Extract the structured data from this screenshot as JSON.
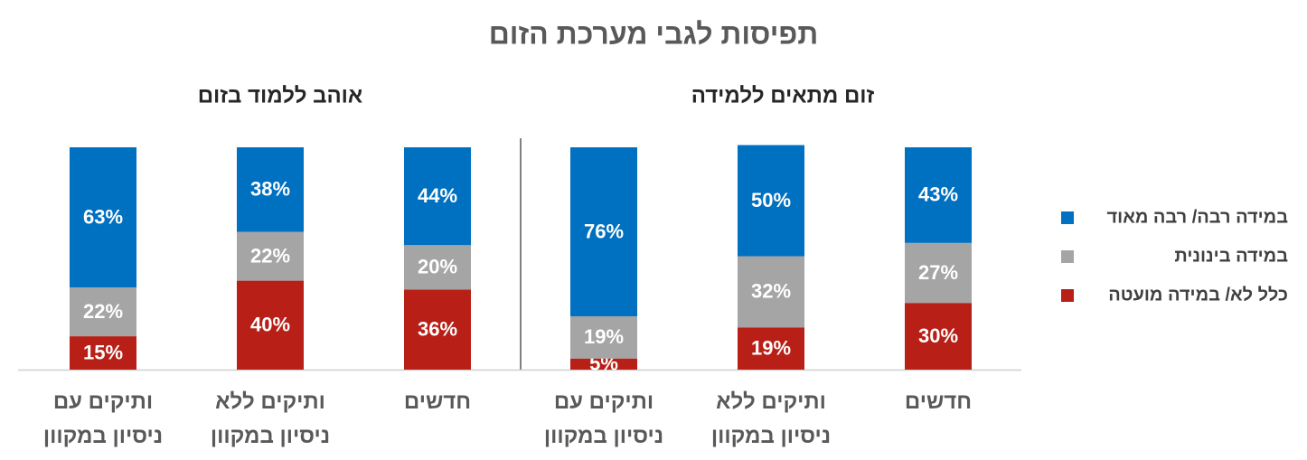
{
  "title": "תפיסות לגבי מערכת הזום",
  "chart_data": [
    {
      "type": "bar",
      "stacked": true,
      "subtitle": "זום מתאים ללמידה",
      "categories": [
        "חדשים",
        "ותיקים ללא ניסיון במקוון",
        "ותיקים עם ניסיון במקוון"
      ],
      "ylim": [
        0,
        100
      ],
      "series": [
        {
          "name": "במידה רבה/ רבה מאוד",
          "color": "#0070c0",
          "values": [
            43,
            50,
            76
          ],
          "value_labels": [
            "43%",
            "50%",
            "76%"
          ]
        },
        {
          "name": "במידה בינונית",
          "color": "#a5a5a5",
          "values": [
            27,
            32,
            19
          ],
          "value_labels": [
            "27%",
            "32%",
            "19%"
          ]
        },
        {
          "name": "כלל לא/ במידה מועטה",
          "color": "#b81f16",
          "values": [
            30,
            19,
            5
          ],
          "value_labels": [
            "30%",
            "19%",
            "5%"
          ]
        }
      ]
    },
    {
      "type": "bar",
      "stacked": true,
      "subtitle": "אוהב ללמוד בזום",
      "categories": [
        "חדשים",
        "ותיקים ללא ניסיון במקוון",
        "ותיקים עם ניסיון במקוון"
      ],
      "ylim": [
        0,
        100
      ],
      "series": [
        {
          "name": "במידה רבה/ רבה מאוד",
          "color": "#0070c0",
          "values": [
            44,
            38,
            63
          ],
          "value_labels": [
            "44%",
            "38%",
            "63%"
          ]
        },
        {
          "name": "במידה בינונית",
          "color": "#a5a5a5",
          "values": [
            20,
            22,
            22
          ],
          "value_labels": [
            "20%",
            "22%",
            "22%"
          ]
        },
        {
          "name": "כלל לא/ במידה מועטה",
          "color": "#b81f16",
          "values": [
            36,
            40,
            15
          ],
          "value_labels": [
            "36%",
            "40%",
            "15%"
          ]
        }
      ]
    }
  ]
}
